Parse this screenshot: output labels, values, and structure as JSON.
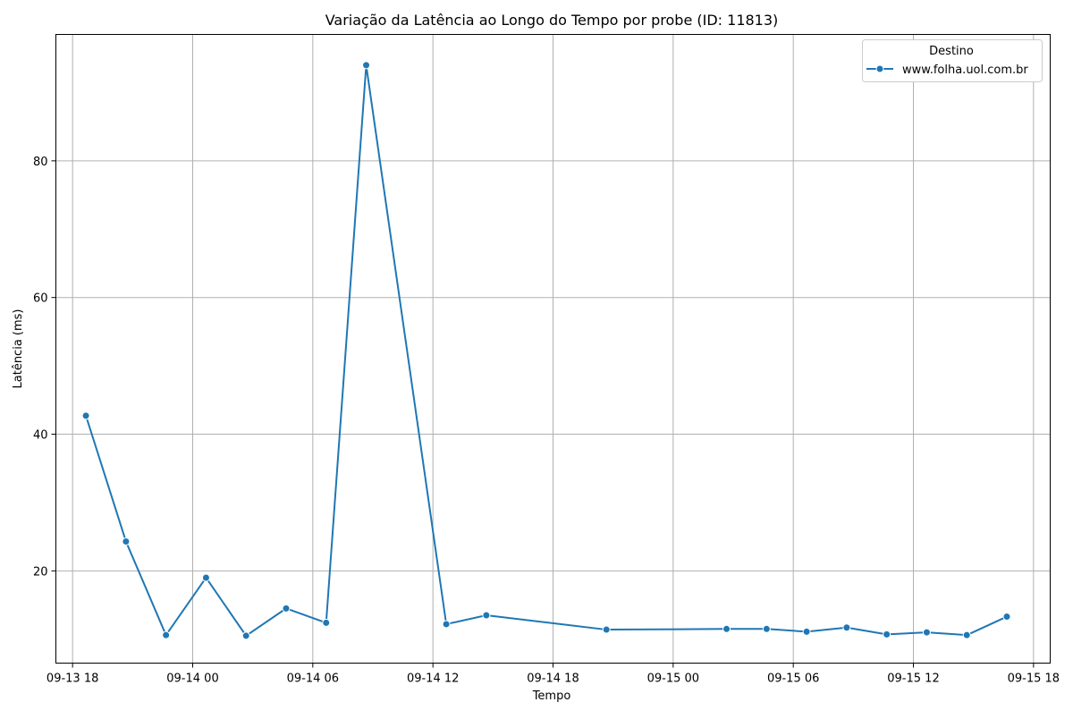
{
  "chart_data": {
    "type": "line",
    "title": "Variação da Latência ao Longo do Tempo por probe (ID: 11813)",
    "xlabel": "Tempo",
    "ylabel": "Latência (ms)",
    "x_tick_labels": [
      "09-13 18",
      "09-14 00",
      "09-14 06",
      "09-14 12",
      "09-14 18",
      "09-15 00",
      "09-15 06",
      "09-15 12",
      "09-15 18"
    ],
    "y_tick_labels": [
      "20",
      "40",
      "60",
      "80"
    ],
    "y_ticks": [
      20,
      40,
      60,
      80
    ],
    "x_range": [
      "2024-09-13 17:10",
      "2024-09-15 18:50"
    ],
    "y_range": [
      6.5,
      98.5
    ],
    "grid": true,
    "legend_placement": "top-right",
    "legend_title": "Destino",
    "line_color": "#1f77b4",
    "series": [
      {
        "name": "www.folha.uol.com.br",
        "x": [
          "2024-09-13 18:40",
          "2024-09-13 20:40",
          "2024-09-13 22:40",
          "2024-09-14 00:40",
          "2024-09-14 02:40",
          "2024-09-14 04:40",
          "2024-09-14 06:40",
          "2024-09-14 08:40",
          "2024-09-14 12:40",
          "2024-09-14 14:40",
          "2024-09-14 20:40",
          "2024-09-15 02:40",
          "2024-09-15 04:40",
          "2024-09-15 06:40",
          "2024-09-15 08:40",
          "2024-09-15 10:40",
          "2024-09-15 12:40",
          "2024-09-15 14:40",
          "2024-09-15 16:40"
        ],
        "values": [
          42.7,
          24.3,
          10.6,
          19.0,
          10.5,
          14.5,
          12.4,
          94.0,
          12.2,
          13.5,
          11.4,
          11.5,
          11.5,
          11.1,
          11.7,
          10.7,
          11.0,
          10.6,
          13.3
        ]
      }
    ]
  }
}
